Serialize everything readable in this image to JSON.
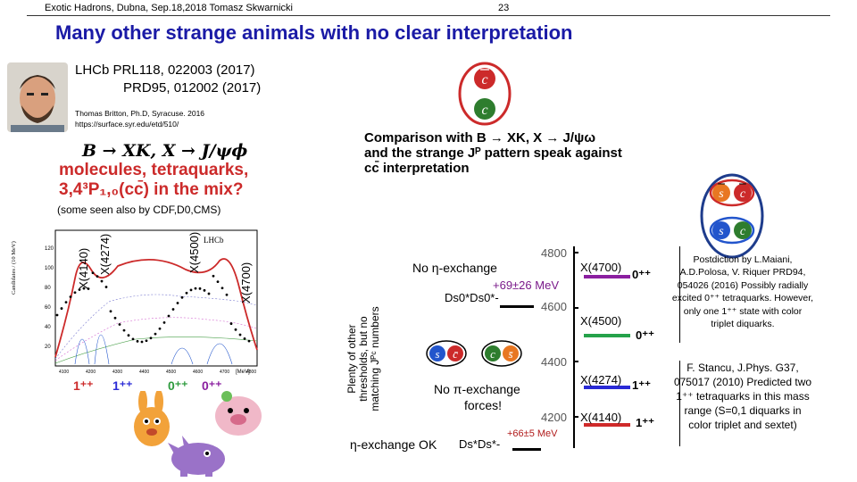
{
  "header": {
    "conference": "Exotic Hadrons, Dubna, Sep.18,2018 Tomasz Skwarnicki",
    "page": "23"
  },
  "title": "Many other strange animals with no clear interpretation",
  "citation": {
    "journal": "LHCb PRL118, 022003 (2017)",
    "journal2": "PRD95, 012002 (2017)",
    "author": "Thomas Britton, Ph.D, Syracuse. 2016",
    "url": "https://surface.syr.edu/etd/510/"
  },
  "left_text": {
    "decay": "B → XK, X → J/ψϕ",
    "molecules": "molecules, tetraquarks,",
    "charm": "3,4³P₁,₀(cc̄) in the mix?",
    "also": "(some seen also by CDF,D0,CMS)"
  },
  "plot": {
    "ylabel": "Candidates / (10 MeV)",
    "brand": "LHCb",
    "xunit": "[MeV]",
    "peaks": [
      "X(4140)",
      "X(4274)",
      "X(4500)",
      "X(4700)"
    ],
    "jp": [
      "1⁺⁺",
      "1⁺⁺",
      "0⁺⁺",
      "0⁺⁺"
    ],
    "xticks": [
      "4100",
      "4200",
      "4300",
      "4400",
      "4500",
      "4600",
      "4700",
      "4800"
    ],
    "yticks": [
      "20",
      "40",
      "60",
      "80",
      "100",
      "120"
    ]
  },
  "comparison": {
    "line1": "Comparison with B → XK, X → J/ψω",
    "line2": "and the strange Jᴾ pattern speak against",
    "line3": "cc̄ interpretation"
  },
  "quarks": {
    "c": "c",
    "cbar": "c̄",
    "s": "s",
    "sbar": "s̄"
  },
  "threshold_label": "Plenty of other thresholds, but no matching Jᴾᶜ numbers",
  "spectrum": {
    "axis": [
      "4800",
      "4600",
      "4400",
      "4200"
    ],
    "levels": [
      {
        "name": "X(4700)",
        "jp": "0⁺⁺",
        "color": "#8b1fa0"
      },
      {
        "name": "X(4500)",
        "jp": "0⁺⁺",
        "color": "#25a24a"
      },
      {
        "name": "X(4274)",
        "jp": "1⁺⁺",
        "color": "#2a2ad6"
      },
      {
        "name": "X(4140)",
        "jp": "1⁺⁺",
        "color": "#cf2a2a"
      }
    ],
    "no_eta": "No η-exchange",
    "shift_top": "+69±26 MeV",
    "ds0": "Ds0*Ds0*-",
    "no_pi": "No π-exchange",
    "forces": "forces!",
    "eta_ok": "η-exchange OK",
    "dsds": "Ds*Ds*-",
    "shift_bottom": "+66±5 MeV"
  },
  "refs": {
    "maiani": "Postdiction by L.Maiani, A.D.Polosa, V. Riquer PRD94, 054026 (2016) Possibly radially excited 0⁺⁺ tetraquarks. However, only one 1⁺⁺ state with color triplet diquarks.",
    "stancu": "F. Stancu, J.Phys. G37, 075017 (2010) Predicted two 1⁺⁺ tetraquarks in this mass range (S=0,1 diquarks in color triplet and sextet)"
  },
  "colors": {
    "title": "#1a1aa6",
    "red": "#cc2a2a",
    "green": "#2e9b3e",
    "quark_c": "#2e7d2e",
    "quark_s": "#2255cc"
  }
}
